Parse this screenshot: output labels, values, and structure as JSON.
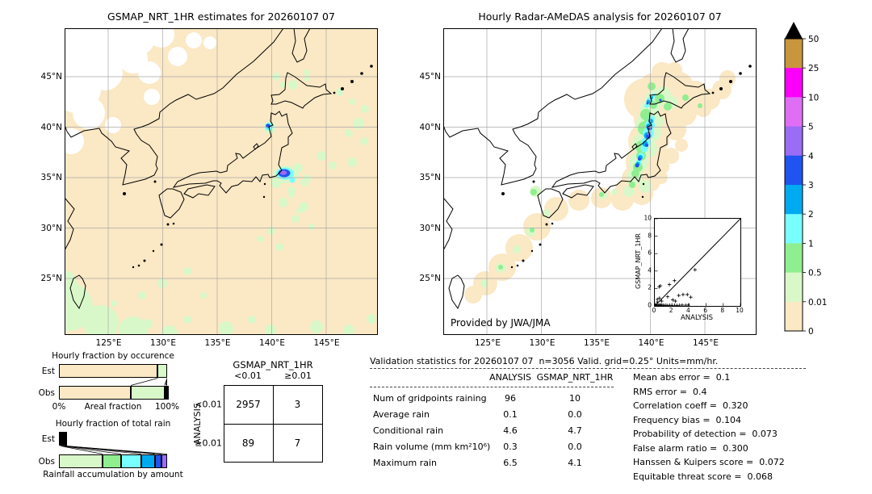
{
  "palette": {
    "peach": "#fbe8c4",
    "pale": "#d9f8c9",
    "green": "#8fee8f",
    "cyan": "#78ffff",
    "sky": "#00aaf0",
    "blue": "#2053f0",
    "purple": "#9b6cf5",
    "orchid": "#e06ef5",
    "magenta": "#fa00fa",
    "gold": "#c8963c",
    "over": "#000000"
  },
  "colorbar": {
    "labels": [
      "50",
      "25",
      "10",
      "5",
      "4",
      "3",
      "2",
      "1",
      "0.5",
      "0.01",
      "0"
    ],
    "colors": [
      "gold",
      "magenta",
      "orchid",
      "purple",
      "blue",
      "sky",
      "cyan",
      "green",
      "pale",
      "peach"
    ],
    "units": "mm/hr"
  },
  "chart_data": [
    {
      "type": "heatmap",
      "name": "gsmap-map",
      "title": "GSMAP_NRT_1HR estimates for 20260107 07",
      "x_ticks": [
        "125°E",
        "130°E",
        "135°E",
        "140°E",
        "145°E"
      ],
      "y_ticks": [
        "45°N",
        "40°N",
        "35°N",
        "30°N",
        "25°N"
      ],
      "units": "mm/hr",
      "colorbar_levels": [
        0,
        0.01,
        0.5,
        1,
        2,
        3,
        4,
        5,
        10,
        25,
        50
      ]
    },
    {
      "type": "heatmap",
      "name": "radar-amedas-map",
      "title": "Hourly Radar-AMeDAS analysis for 20260107 07",
      "x_ticks": [
        "125°E",
        "130°E",
        "135°E",
        "140°E",
        "145°E"
      ],
      "y_ticks": [
        "45°N",
        "40°N",
        "35°N",
        "30°N",
        "25°N"
      ],
      "annotation": "Provided by JWA/JMA",
      "units": "mm/hr"
    },
    {
      "type": "bar",
      "subtype": "stacked_fraction_horizontal",
      "title": "Hourly fraction by occurence",
      "categories": [
        "Est",
        "Obs"
      ],
      "xlabel": "Areal fraction",
      "xlim": [
        "0%",
        "100%"
      ],
      "series": [
        {
          "name": "0–0.01",
          "color": "peach",
          "values": [
            0.913,
            0.664
          ]
        },
        {
          "name": "0.01–0.5",
          "color": "pale",
          "values": [
            0.087,
            0.311
          ]
        },
        {
          "name": "0.5–1",
          "color": "green",
          "values": [
            0,
            0.012
          ]
        },
        {
          "name": "1–2",
          "color": "cyan",
          "values": [
            0,
            0.008
          ]
        },
        {
          "name": "2–3",
          "color": "sky",
          "values": [
            0,
            0.003
          ]
        },
        {
          "name": "3–4",
          "color": "blue",
          "values": [
            0,
            0.002
          ]
        }
      ]
    },
    {
      "type": "bar",
      "subtype": "stacked_fraction_horizontal",
      "title": "Hourly fraction of total rain",
      "categories": [
        "Est",
        "Obs"
      ],
      "xlabel": "Rainfall accumulation by amount",
      "series": [
        {
          "name": "0.01–0.5",
          "color": "pale",
          "values": [
            0.013,
            0.405
          ]
        },
        {
          "name": "0.5–1",
          "color": "green",
          "values": [
            0.013,
            0.17
          ]
        },
        {
          "name": "1–2",
          "color": "cyan",
          "values": [
            0.013,
            0.185
          ]
        },
        {
          "name": "2–3",
          "color": "sky",
          "values": [
            0.01,
            0.125
          ]
        },
        {
          "name": "3–4",
          "color": "blue",
          "values": [
            0.009,
            0.065
          ]
        },
        {
          "name": "4–5",
          "color": "purple",
          "values": [
            0.008,
            0.05
          ]
        }
      ]
    },
    {
      "type": "table",
      "name": "contingency-table",
      "col_group": "GSMAP_NRT_1HR",
      "row_group": "ANALYSIS",
      "col_labels": [
        "<0.01",
        "≥0.01"
      ],
      "row_labels": [
        "<0.01",
        "≥0.01"
      ],
      "values": [
        [
          2957,
          3
        ],
        [
          89,
          7
        ]
      ]
    },
    {
      "type": "table",
      "name": "validation-statistics",
      "title": "Validation statistics for 20260107 07  n=3056 Valid. grid=0.25° Units=mm/hr.",
      "columns": [
        "ANALYSIS",
        "GSMAP_NRT_1HR"
      ],
      "rows": [
        [
          "Num of gridpoints raining",
          "96",
          "10"
        ],
        [
          "Average rain",
          "0.1",
          "0.0"
        ],
        [
          "Conditional rain",
          "4.6",
          "4.7"
        ],
        [
          "Rain volume (mm km²10⁶)",
          "0.3",
          "0.0"
        ],
        [
          "Maximum rain",
          "6.5",
          "4.1"
        ]
      ]
    },
    {
      "type": "scatter",
      "name": "inset-scatter",
      "xlabel": "ANALYSIS",
      "ylabel": "GSMAP_NRT_1HR",
      "xlim": [
        0,
        10
      ],
      "ylim": [
        0,
        10
      ],
      "x_ticks": [
        "0",
        "2",
        "4",
        "6",
        "8",
        "10"
      ],
      "y_ticks": [
        "0",
        "2",
        "4",
        "6",
        "8",
        "10"
      ],
      "diagonal": true,
      "points": [
        [
          0.05,
          0.05
        ],
        [
          0.1,
          0.1
        ],
        [
          0.2,
          0.05
        ],
        [
          0.3,
          0.1
        ],
        [
          0.4,
          0.05
        ],
        [
          0.5,
          0.08
        ],
        [
          0.6,
          0.05
        ],
        [
          0.7,
          0.1
        ],
        [
          0.8,
          0.05
        ],
        [
          0.95,
          0.08
        ],
        [
          1.1,
          0.05
        ],
        [
          1.3,
          0.08
        ],
        [
          1.5,
          0.05
        ],
        [
          1.75,
          0.08
        ],
        [
          2.0,
          0.05
        ],
        [
          2.3,
          0.08
        ],
        [
          2.6,
          0.05
        ],
        [
          2.9,
          0.08
        ],
        [
          3.2,
          0.1
        ],
        [
          3.6,
          0.08
        ],
        [
          3.9,
          0.1
        ],
        [
          0.3,
          0.45
        ],
        [
          0.3,
          0.75
        ],
        [
          0.55,
          0.9
        ],
        [
          0.8,
          0.55
        ],
        [
          1.5,
          1.05
        ],
        [
          2.1,
          0.7
        ],
        [
          2.4,
          0.55
        ],
        [
          0.5,
          2.2
        ],
        [
          0.65,
          2.3
        ],
        [
          1.7,
          2.45
        ],
        [
          2.3,
          2.9
        ],
        [
          2.8,
          1.2
        ],
        [
          3.3,
          1.3
        ],
        [
          3.8,
          1.3
        ],
        [
          4.2,
          1.0
        ],
        [
          4.7,
          4.15
        ]
      ]
    },
    {
      "type": "table",
      "name": "skill-scores",
      "rows": [
        [
          "Mean abs error",
          "0.1"
        ],
        [
          "RMS error",
          "0.4"
        ],
        [
          "Correlation coeff",
          "0.320"
        ],
        [
          "Frequency bias",
          "0.104"
        ],
        [
          "Probability of detection",
          "0.073"
        ],
        [
          "False alarm ratio",
          "0.300"
        ],
        [
          "Hanssen & Kuipers score",
          "0.072"
        ],
        [
          "Equitable threat score",
          "0.068"
        ]
      ]
    }
  ]
}
